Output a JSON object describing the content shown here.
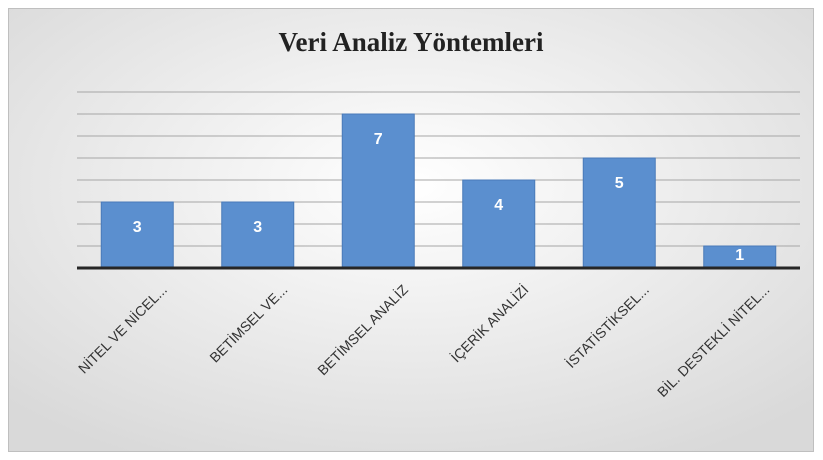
{
  "chart_data": {
    "type": "bar",
    "title": "Veri Analiz Yöntemleri",
    "categories": [
      "NİTEL VE NİCEL...",
      "BETİMSEL VE...",
      "BETİMSEL ANALİZ",
      "İÇERİK ANALİZİ",
      "İSTATİSTİKSEL...",
      "BİL. DESTEKLİ NİTEL..."
    ],
    "values": [
      3,
      3,
      7,
      4,
      5,
      1
    ],
    "color": "#5b8fcf",
    "ylim": [
      0,
      8
    ],
    "yticks": [
      0,
      1,
      2,
      3,
      4,
      5,
      6,
      7,
      8
    ],
    "grid": true
  }
}
